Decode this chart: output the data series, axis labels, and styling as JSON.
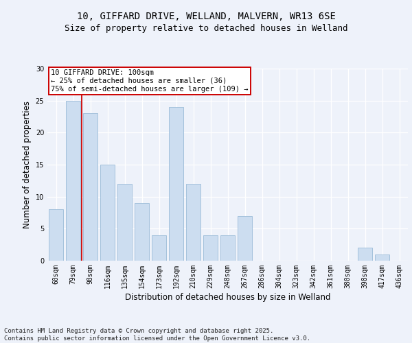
{
  "title_line1": "10, GIFFARD DRIVE, WELLAND, MALVERN, WR13 6SE",
  "title_line2": "Size of property relative to detached houses in Welland",
  "xlabel": "Distribution of detached houses by size in Welland",
  "ylabel": "Number of detached properties",
  "categories": [
    "60sqm",
    "79sqm",
    "98sqm",
    "116sqm",
    "135sqm",
    "154sqm",
    "173sqm",
    "192sqm",
    "210sqm",
    "229sqm",
    "248sqm",
    "267sqm",
    "286sqm",
    "304sqm",
    "323sqm",
    "342sqm",
    "361sqm",
    "380sqm",
    "398sqm",
    "417sqm",
    "436sqm"
  ],
  "values": [
    8,
    25,
    23,
    15,
    12,
    9,
    4,
    24,
    12,
    4,
    4,
    7,
    0,
    0,
    0,
    0,
    0,
    0,
    2,
    1,
    0
  ],
  "bar_color": "#ccddf0",
  "bar_edgecolor": "#9bbbd8",
  "vline_color": "#cc0000",
  "vline_index": 2,
  "annotation_text": "10 GIFFARD DRIVE: 100sqm\n← 25% of detached houses are smaller (36)\n75% of semi-detached houses are larger (109) →",
  "annotation_box_edgecolor": "#cc0000",
  "ylim": [
    0,
    30
  ],
  "yticks": [
    0,
    5,
    10,
    15,
    20,
    25,
    30
  ],
  "background_color": "#eef2fa",
  "grid_color": "#ffffff",
  "footer_text": "Contains HM Land Registry data © Crown copyright and database right 2025.\nContains public sector information licensed under the Open Government Licence v3.0.",
  "title_fontsize": 10,
  "subtitle_fontsize": 9,
  "axis_label_fontsize": 8.5,
  "tick_fontsize": 7,
  "annotation_fontsize": 7.5,
  "footer_fontsize": 6.5
}
